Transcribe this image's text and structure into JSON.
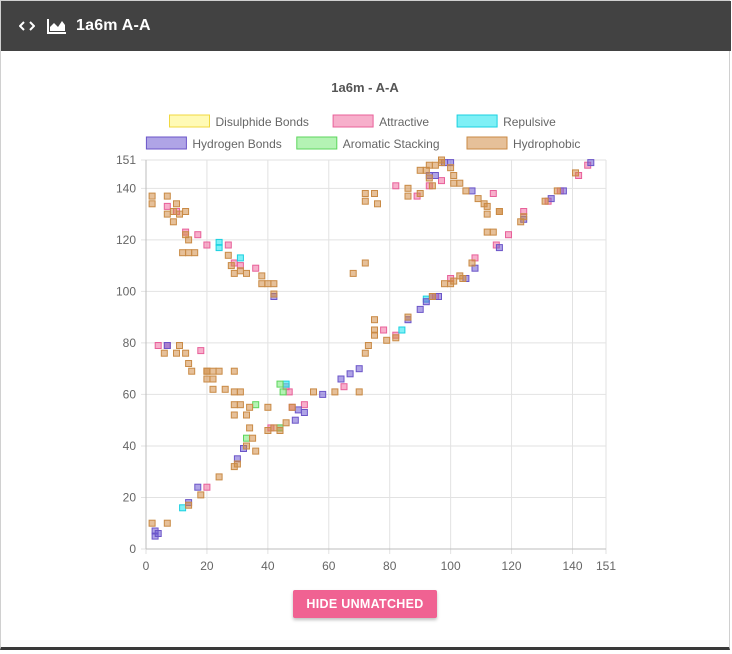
{
  "header": {
    "title": "1a6m A-A",
    "code_icon": "code-icon",
    "chart_icon": "area-chart-icon"
  },
  "button": {
    "label": "HIDE UNMATCHED"
  },
  "colors": {
    "header_bg": "#424242",
    "button": "#f06292",
    "disulphide": "#fff59d",
    "attractive": "#e8609a",
    "repulsive": "#22e6ee",
    "hydrogen": "#6b55c8",
    "aromatic": "#82e882",
    "hydrophobic": "#d2954f"
  },
  "chart_data": {
    "type": "scatter",
    "title": "1a6m - A-A",
    "xlim": [
      0,
      151
    ],
    "ylim": [
      0,
      151
    ],
    "x_ticks": [
      0,
      20,
      40,
      60,
      80,
      100,
      120,
      140,
      151
    ],
    "y_ticks": [
      0,
      20,
      40,
      60,
      80,
      100,
      120,
      140,
      151
    ],
    "grid": true,
    "legend_position": "top",
    "series": [
      {
        "name": "Disulphide Bonds",
        "fill": "rgba(255,245,120,0.55)",
        "stroke": "#f0d840",
        "points": []
      },
      {
        "name": "Attractive",
        "fill": "rgba(240,110,160,0.55)",
        "stroke": "#e8609a",
        "points": [
          [
            7,
            133
          ],
          [
            10,
            131
          ],
          [
            13,
            123
          ],
          [
            17,
            122
          ],
          [
            20,
            118
          ],
          [
            27,
            118
          ],
          [
            29,
            111
          ],
          [
            31,
            110
          ],
          [
            36,
            109
          ],
          [
            4,
            79
          ],
          [
            7,
            79
          ],
          [
            18,
            77
          ],
          [
            20,
            24
          ],
          [
            47,
            61
          ],
          [
            48,
            55
          ],
          [
            52,
            56
          ],
          [
            46,
            63
          ],
          [
            65,
            63
          ],
          [
            78,
            85
          ],
          [
            82,
            83
          ],
          [
            95,
            98
          ],
          [
            100,
            105
          ],
          [
            108,
            113
          ],
          [
            115,
            118
          ],
          [
            119,
            122
          ],
          [
            89,
            137
          ],
          [
            93,
            141
          ],
          [
            97,
            143
          ],
          [
            114,
            138
          ],
          [
            124,
            131
          ],
          [
            132,
            135
          ],
          [
            136,
            139
          ],
          [
            142,
            145
          ],
          [
            145,
            149
          ],
          [
            82,
            141
          ],
          [
            41,
            47
          ],
          [
            44,
            47
          ]
        ]
      },
      {
        "name": "Repulsive",
        "fill": "rgba(40,230,240,0.6)",
        "stroke": "#1ad0e0",
        "points": [
          [
            24,
            119
          ],
          [
            24,
            117
          ],
          [
            31,
            113
          ],
          [
            12,
            16
          ],
          [
            46,
            64
          ],
          [
            84,
            85
          ],
          [
            92,
            97
          ]
        ]
      },
      {
        "name": "Hydrogen Bonds",
        "fill": "rgba(110,90,210,0.55)",
        "stroke": "#6b55c8",
        "points": [
          [
            7,
            79
          ],
          [
            3,
            7
          ],
          [
            3,
            5
          ],
          [
            4,
            6
          ],
          [
            17,
            24
          ],
          [
            14,
            18
          ],
          [
            30,
            35
          ],
          [
            32,
            39
          ],
          [
            42,
            98
          ],
          [
            49,
            50
          ],
          [
            52,
            53
          ],
          [
            50,
            54
          ],
          [
            58,
            60
          ],
          [
            64,
            66
          ],
          [
            67,
            68
          ],
          [
            70,
            70
          ],
          [
            86,
            89
          ],
          [
            90,
            93
          ],
          [
            92,
            96
          ],
          [
            94,
            98
          ],
          [
            96,
            98
          ],
          [
            105,
            105
          ],
          [
            108,
            109
          ],
          [
            116,
            117
          ],
          [
            124,
            128
          ],
          [
            133,
            136
          ],
          [
            137,
            139
          ],
          [
            146,
            150
          ],
          [
            93,
            145
          ],
          [
            95,
            145
          ],
          [
            98,
            150
          ],
          [
            100,
            150
          ],
          [
            107,
            139
          ]
        ]
      },
      {
        "name": "Aromatic Stacking",
        "fill": "rgba(130,235,130,0.6)",
        "stroke": "#5cd65c",
        "points": [
          [
            33,
            43
          ],
          [
            36,
            56
          ],
          [
            44,
            64
          ],
          [
            45,
            61
          ],
          [
            44,
            47
          ]
        ]
      },
      {
        "name": "Hydrophobic",
        "fill": "rgba(210,140,70,0.55)",
        "stroke": "#c98a45",
        "points": [
          [
            2,
            137
          ],
          [
            2,
            134
          ],
          [
            7,
            137
          ],
          [
            10,
            134
          ],
          [
            9,
            131
          ],
          [
            11,
            130
          ],
          [
            13,
            131
          ],
          [
            7,
            130
          ],
          [
            9,
            127
          ],
          [
            12,
            115
          ],
          [
            14,
            115
          ],
          [
            16,
            115
          ],
          [
            14,
            120
          ],
          [
            13,
            122
          ],
          [
            27,
            114
          ],
          [
            28,
            110
          ],
          [
            29,
            107
          ],
          [
            31,
            108
          ],
          [
            33,
            107
          ],
          [
            38,
            106
          ],
          [
            38,
            103
          ],
          [
            40,
            103
          ],
          [
            42,
            103
          ],
          [
            42,
            99
          ],
          [
            6,
            76
          ],
          [
            11,
            79
          ],
          [
            10,
            76
          ],
          [
            13,
            76
          ],
          [
            14,
            72
          ],
          [
            15,
            69
          ],
          [
            20,
            69
          ],
          [
            22,
            69
          ],
          [
            20,
            66
          ],
          [
            22,
            66
          ],
          [
            22,
            62
          ],
          [
            24,
            69
          ],
          [
            29,
            69
          ],
          [
            26,
            62
          ],
          [
            29,
            61
          ],
          [
            31,
            61
          ],
          [
            29,
            56
          ],
          [
            31,
            56
          ],
          [
            34,
            55
          ],
          [
            29,
            52
          ],
          [
            33,
            52
          ],
          [
            34,
            47
          ],
          [
            35,
            43
          ],
          [
            33,
            40
          ],
          [
            36,
            38
          ],
          [
            30,
            33
          ],
          [
            29,
            32
          ],
          [
            24,
            28
          ],
          [
            18,
            21
          ],
          [
            14,
            17
          ],
          [
            2,
            10
          ],
          [
            7,
            10
          ],
          [
            40,
            55
          ],
          [
            40,
            46
          ],
          [
            42,
            47
          ],
          [
            44,
            46
          ],
          [
            46,
            49
          ],
          [
            48,
            55
          ],
          [
            55,
            61
          ],
          [
            62,
            61
          ],
          [
            68,
            107
          ],
          [
            72,
            111
          ],
          [
            72,
            76
          ],
          [
            75,
            89
          ],
          [
            75,
            85
          ],
          [
            75,
            83
          ],
          [
            79,
            81
          ],
          [
            82,
            82
          ],
          [
            86,
            90
          ],
          [
            94,
            98
          ],
          [
            98,
            103
          ],
          [
            100,
            103
          ],
          [
            101,
            104
          ],
          [
            103,
            106
          ],
          [
            104,
            105
          ],
          [
            107,
            111
          ],
          [
            112,
            123
          ],
          [
            114,
            123
          ],
          [
            116,
            131
          ],
          [
            123,
            127
          ],
          [
            124,
            129
          ],
          [
            131,
            135
          ],
          [
            135,
            139
          ],
          [
            141,
            146
          ],
          [
            72,
            138
          ],
          [
            72,
            135
          ],
          [
            75,
            138
          ],
          [
            76,
            134
          ],
          [
            86,
            137
          ],
          [
            86,
            140
          ],
          [
            90,
            138
          ],
          [
            90,
            147
          ],
          [
            92,
            147
          ],
          [
            93,
            149
          ],
          [
            95,
            149
          ],
          [
            101,
            145
          ],
          [
            101,
            142
          ],
          [
            103,
            142
          ],
          [
            105,
            139
          ],
          [
            109,
            136
          ],
          [
            111,
            134
          ],
          [
            112,
            133
          ],
          [
            112,
            130
          ],
          [
            116,
            131
          ],
          [
            93,
            144
          ],
          [
            94,
            141
          ],
          [
            97,
            150
          ],
          [
            100,
            148
          ],
          [
            97,
            151
          ],
          [
            20,
            69
          ],
          [
            70,
            61
          ],
          [
            73,
            79
          ]
        ]
      }
    ]
  }
}
